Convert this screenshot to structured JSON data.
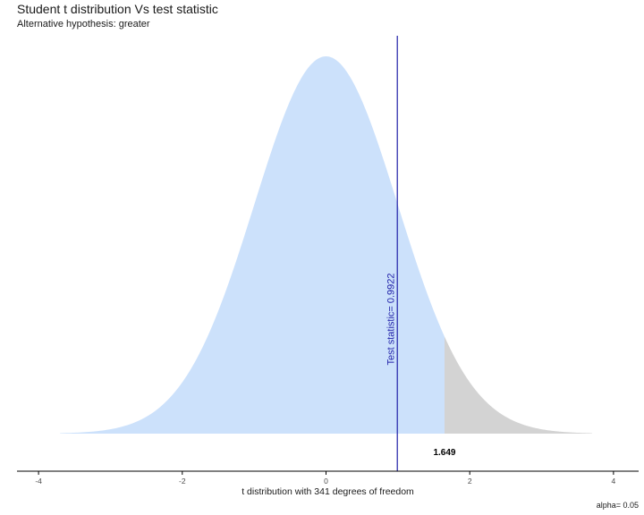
{
  "chart_data": {
    "type": "area",
    "title": "Student t distribution Vs test statistic",
    "subtitle": "Alternative hypothesis: greater",
    "xlabel": "t distribution with 341 degrees of freedom",
    "ylabel": "",
    "caption": "alpha= 0.05",
    "degrees_of_freedom": 341,
    "xlim": [
      -4.3,
      4.35
    ],
    "curve_range": [
      -3.7,
      3.7
    ],
    "x_ticks": [
      -4,
      -2,
      0,
      2,
      4
    ],
    "x_tick_labels": [
      "-4",
      "-2",
      "0",
      "2",
      "4"
    ],
    "test_statistic": 0.9922,
    "test_statistic_label": "Test statistic= 0.9922",
    "critical_value": 1.649,
    "critical_value_label": "1.649",
    "alpha": 0.05,
    "grid": false,
    "legend": "none",
    "colors": {
      "acceptance_region": "#cce1fb",
      "rejection_region": "#d3d3d3",
      "test_statistic_line": "#1f1fa8",
      "axis": "#000000",
      "text": "#1a1a1a"
    }
  }
}
